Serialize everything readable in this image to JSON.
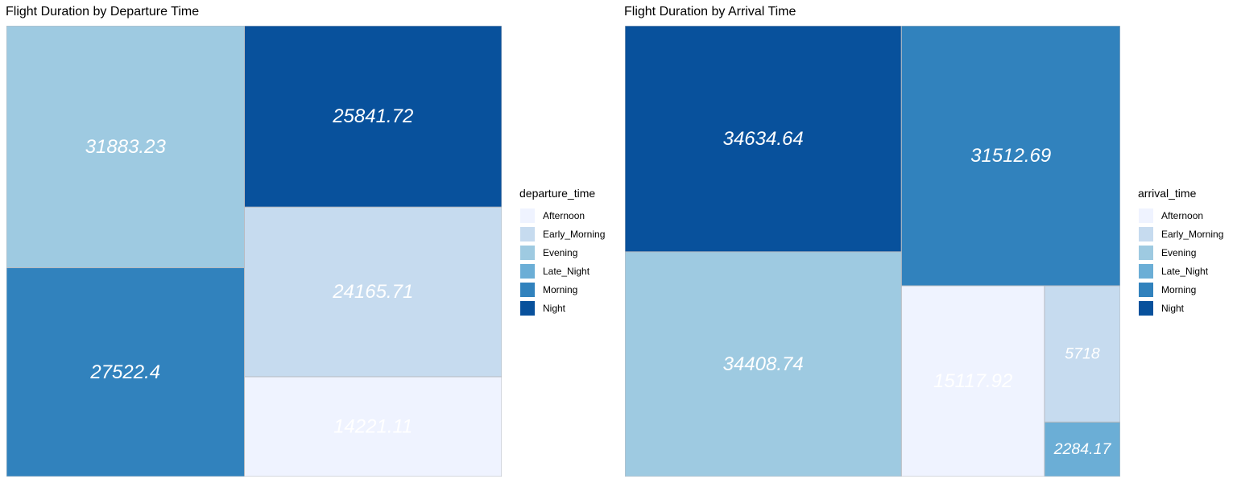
{
  "palette": {
    "Afternoon": "#EFF3FF",
    "Early_Morning": "#C6DBEF",
    "Evening": "#9ECAE1",
    "Late_Night": "#6BAED6",
    "Morning": "#3182BD",
    "Night": "#08519C"
  },
  "chart_data": [
    {
      "type": "treemap",
      "title": "Flight Duration by Departure Time",
      "legend_title": "departure_time",
      "legend_position": "right",
      "categories": [
        "Afternoon",
        "Early_Morning",
        "Evening",
        "Late_Night",
        "Morning",
        "Night"
      ],
      "values": [
        {
          "category": "Evening",
          "value": 31883.23,
          "label": "31883.23"
        },
        {
          "category": "Morning",
          "value": 27522.4,
          "label": "27522.4"
        },
        {
          "category": "Night",
          "value": 25841.72,
          "label": "25841.72"
        },
        {
          "category": "Early_Morning",
          "value": 24165.71,
          "label": "24165.71"
        },
        {
          "category": "Afternoon",
          "value": 14221.11,
          "label": "14221.11"
        }
      ]
    },
    {
      "type": "treemap",
      "title": "Flight Duration by Arrival Time",
      "legend_title": "arrival_time",
      "legend_position": "right",
      "categories": [
        "Afternoon",
        "Early_Morning",
        "Evening",
        "Late_Night",
        "Morning",
        "Night"
      ],
      "values": [
        {
          "category": "Night",
          "value": 34634.64,
          "label": "34634.64"
        },
        {
          "category": "Evening",
          "value": 34408.74,
          "label": "34408.74"
        },
        {
          "category": "Morning",
          "value": 31512.69,
          "label": "31512.69"
        },
        {
          "category": "Afternoon",
          "value": 15117.92,
          "label": "15117.92"
        },
        {
          "category": "Early_Morning",
          "value": 5718,
          "label": "5718"
        },
        {
          "category": "Late_Night",
          "value": 2284.17,
          "label": "2284.17"
        }
      ]
    }
  ]
}
